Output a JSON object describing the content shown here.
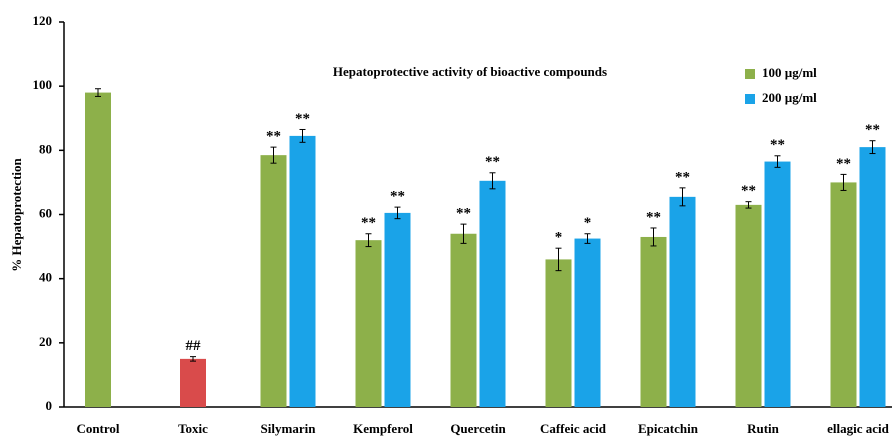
{
  "chart_data": {
    "type": "bar",
    "title": "Hepatoprotective activity of bioactive compounds",
    "ylabel": "% Hepatoprotection",
    "categories": [
      "Control",
      "Toxic",
      "Silymarin",
      "Kempferol",
      "Quercetin",
      "Caffeic acid",
      "Epicatchin",
      "Rutin",
      "ellagic acid"
    ],
    "series": [
      {
        "name": "100 µg/ml",
        "color": "#8db04a",
        "point_colors": [
          "#8db04a",
          "#d94b4b",
          "#8db04a",
          "#8db04a",
          "#8db04a",
          "#8db04a",
          "#8db04a",
          "#8db04a",
          "#8db04a"
        ],
        "values": [
          98,
          15,
          78.5,
          52,
          54,
          46,
          53,
          63,
          70
        ],
        "errors": [
          1.2,
          0.7,
          2.5,
          2,
          3,
          3.5,
          2.8,
          1,
          2.5
        ],
        "annotations": [
          null,
          "##",
          "**",
          "**",
          "**",
          "*",
          "**",
          "**",
          "**"
        ]
      },
      {
        "name": "200 µg/ml",
        "color": "#1aa3e8",
        "values": [
          null,
          null,
          84.5,
          60.5,
          70.5,
          52.5,
          65.5,
          76.5,
          81
        ],
        "errors": [
          null,
          null,
          2,
          1.8,
          2.5,
          1.5,
          2.8,
          1.8,
          2
        ],
        "annotations": [
          null,
          null,
          "**",
          "**",
          "**",
          "*",
          "**",
          "**",
          "**"
        ]
      }
    ],
    "ylim": [
      0,
      120
    ],
    "yticks": [
      0,
      20,
      40,
      60,
      80,
      100,
      120
    ],
    "legend": "top-right",
    "grid": false
  }
}
